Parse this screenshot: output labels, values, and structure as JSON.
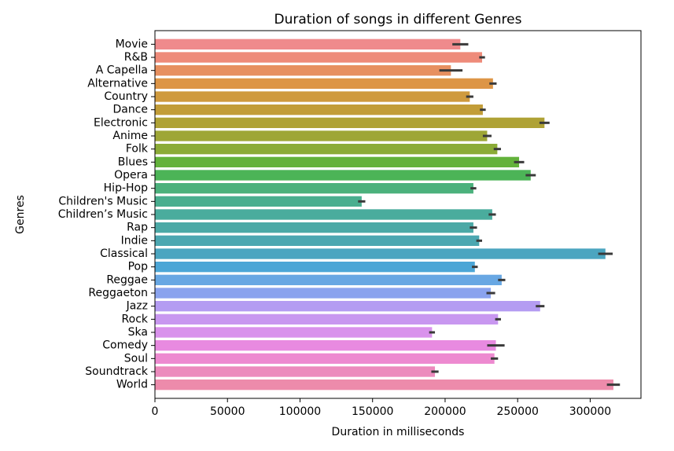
{
  "chart_data": {
    "type": "bar",
    "orientation": "horizontal",
    "title": "Duration of songs in different Genres",
    "xlabel": "Duration in milliseconds",
    "ylabel": "Genres",
    "xlim": [
      0,
      335000
    ],
    "xticks": [
      0,
      50000,
      100000,
      150000,
      200000,
      250000,
      300000
    ],
    "xtick_labels": [
      "0",
      "50000",
      "100000",
      "150000",
      "200000",
      "250000",
      "300000"
    ],
    "grid": false,
    "categories": [
      "Movie",
      "R&B",
      "A Capella",
      "Alternative",
      "Country",
      "Dance",
      "Electronic",
      "Anime",
      "Folk",
      "Blues",
      "Opera",
      "Hip-Hop",
      "Children's Music",
      "Children’s Music",
      "Rap",
      "Indie",
      "Classical",
      "Pop",
      "Reggae",
      "Reggaeton",
      "Jazz",
      "Rock",
      "Ska",
      "Comedy",
      "Soul",
      "Soundtrack",
      "World"
    ],
    "values": [
      210500,
      225500,
      204000,
      233000,
      217000,
      226000,
      268500,
      229000,
      236000,
      251000,
      259000,
      219500,
      142500,
      232500,
      219500,
      223500,
      310500,
      220500,
      239000,
      231500,
      265500,
      236500,
      191000,
      235000,
      234000,
      193000,
      316000
    ],
    "errors": [
      5500,
      2000,
      8000,
      2500,
      2500,
      2000,
      3500,
      3000,
      2500,
      3500,
      3500,
      2000,
      2500,
      2500,
      2500,
      2000,
      5000,
      2000,
      2500,
      3000,
      3000,
      2000,
      2000,
      6000,
      2500,
      2500,
      4500
    ],
    "colors": [
      "#ef8a8c",
      "#ee8b7a",
      "#e79060",
      "#dd9546",
      "#cf9a3e",
      "#c29d38",
      "#afa235",
      "#9ea636",
      "#8bab37",
      "#63b23b",
      "#4cb457",
      "#4bb17c",
      "#49ae8f",
      "#4aac9d",
      "#4ba9a6",
      "#4ca7b1",
      "#4ba5c0",
      "#4ca6d6",
      "#68a7e3",
      "#8aa3ee",
      "#b49cf2",
      "#c897f0",
      "#d992ec",
      "#e88ae0",
      "#ed8ad0",
      "#ec8bbd",
      "#ed8bab"
    ]
  }
}
